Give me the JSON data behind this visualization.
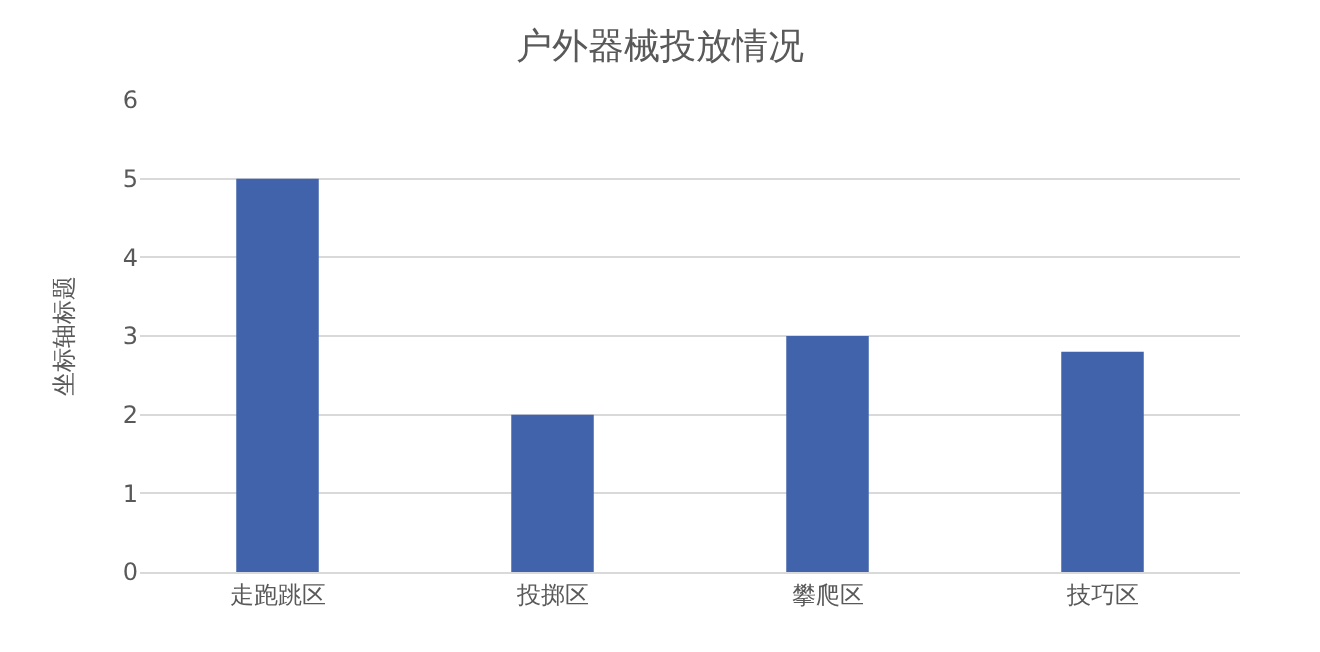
{
  "chart_data": {
    "type": "bar",
    "title": "户外器械投放情况",
    "ylabel": "坐标轴标题",
    "categories": [
      "走跑跳区",
      "投掷区",
      "攀爬区",
      "技巧区"
    ],
    "values": [
      5,
      2,
      3,
      2.8
    ],
    "color": "#4063ac",
    "ylim": [
      0,
      6
    ],
    "yticks": [
      0,
      1,
      2,
      3,
      4,
      5,
      6
    ],
    "grid": "y"
  }
}
